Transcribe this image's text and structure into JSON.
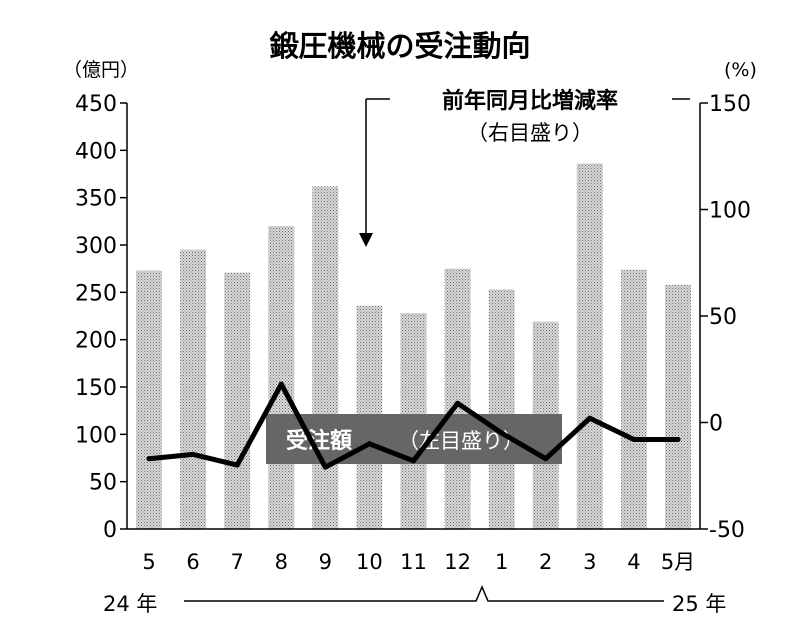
{
  "chart_data": {
    "type": "bar",
    "title": "鍛圧機械の受注動向",
    "categories": [
      "5",
      "6",
      "7",
      "8",
      "9",
      "10",
      "11",
      "12",
      "1",
      "2",
      "3",
      "4",
      "5月"
    ],
    "year_labels": {
      "start": "24 年",
      "end": "25 年"
    },
    "left_axis": {
      "unit": "（億円）",
      "ylim": [
        0,
        450
      ],
      "ticks": [
        0,
        50,
        100,
        150,
        200,
        250,
        300,
        350,
        400,
        450
      ],
      "tick_labels": [
        "0",
        "50",
        "100",
        "150",
        "200",
        "250",
        "300",
        "350",
        "400",
        "450"
      ]
    },
    "right_axis": {
      "unit": "(%)",
      "ylim": [
        -50,
        150
      ],
      "ticks": [
        -50,
        0,
        50,
        100,
        150
      ],
      "tick_labels": [
        "-50",
        "0",
        "50",
        "100",
        "150"
      ]
    },
    "series": [
      {
        "name": "受注額",
        "note": "（左目盛り）",
        "type": "bar",
        "axis": "left",
        "values": [
          273,
          295,
          271,
          320,
          362,
          236,
          228,
          275,
          253,
          219,
          386,
          274,
          258
        ]
      },
      {
        "name": "前年同月比増減率",
        "note": "（右目盛り）",
        "type": "line",
        "axis": "right",
        "values": [
          -17,
          -15,
          -20,
          18,
          -21,
          -10,
          -18,
          9,
          -5,
          -17,
          2,
          -8,
          -8
        ]
      }
    ],
    "legend": "in-plot",
    "grid": false
  }
}
